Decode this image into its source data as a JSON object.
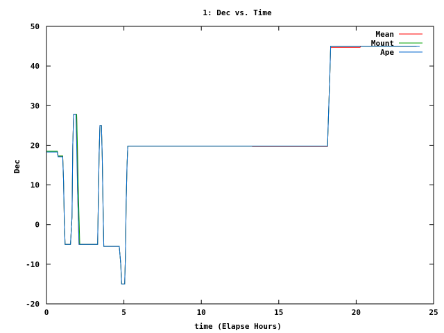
{
  "chart_data": {
    "type": "line",
    "title": "1: Dec vs. Time",
    "xlabel": "time (Elapse Hours)",
    "ylabel": "Dec",
    "xlim": [
      0,
      25
    ],
    "ylim": [
      -20,
      50
    ],
    "xticks": [
      0,
      5,
      10,
      15,
      20,
      25
    ],
    "yticks": [
      -20,
      -10,
      0,
      10,
      20,
      30,
      40,
      50
    ],
    "grid": false,
    "legend_position": "top-right",
    "series": [
      {
        "name": "Mean",
        "color": "#ff0000",
        "points": [
          [
            0,
            18.5
          ],
          [
            0.7,
            18.5
          ],
          [
            0.75,
            17.3
          ],
          [
            1.05,
            17.3
          ],
          [
            1.1,
            11
          ],
          [
            1.15,
            1
          ],
          [
            1.2,
            -5
          ],
          [
            1.55,
            -5
          ],
          [
            1.65,
            2
          ],
          [
            1.7,
            20
          ],
          [
            1.75,
            27.8
          ],
          [
            1.95,
            27.8
          ],
          [
            1.98,
            20
          ],
          [
            2.0,
            10
          ],
          [
            2.05,
            2
          ],
          [
            2.1,
            -5
          ],
          [
            3.3,
            -5
          ],
          [
            3.4,
            18
          ],
          [
            3.45,
            25
          ],
          [
            3.55,
            25
          ],
          [
            3.6,
            17
          ],
          [
            3.65,
            5
          ],
          [
            3.7,
            -5.5
          ],
          [
            4.7,
            -5.5
          ],
          [
            4.8,
            -10
          ],
          [
            4.85,
            -15
          ],
          [
            5.05,
            -15
          ],
          [
            5.1,
            -8
          ],
          [
            5.15,
            6
          ],
          [
            5.2,
            15
          ],
          [
            5.25,
            19.8
          ],
          [
            13.3,
            19.8
          ],
          [
            13.3,
            19.7
          ],
          [
            18.15,
            19.7
          ],
          [
            18.2,
            26
          ],
          [
            18.3,
            38
          ],
          [
            18.35,
            44.7
          ],
          [
            20.25,
            44.7
          ],
          [
            20.3,
            45
          ],
          [
            23.9,
            45
          ]
        ]
      },
      {
        "name": "Mount",
        "color": "#00a000",
        "points": [
          [
            0,
            18.5
          ],
          [
            0.7,
            18.5
          ],
          [
            0.75,
            17.3
          ],
          [
            1.05,
            17.3
          ],
          [
            1.1,
            11
          ],
          [
            1.15,
            1
          ],
          [
            1.2,
            -5
          ],
          [
            1.55,
            -5
          ],
          [
            1.65,
            2
          ],
          [
            1.7,
            20
          ],
          [
            1.75,
            27.8
          ],
          [
            1.95,
            27.8
          ],
          [
            2.0,
            20
          ],
          [
            2.05,
            10
          ],
          [
            2.1,
            2
          ],
          [
            2.15,
            -5
          ],
          [
            3.3,
            -5
          ],
          [
            3.4,
            18
          ],
          [
            3.45,
            25
          ],
          [
            3.55,
            25
          ],
          [
            3.6,
            17
          ],
          [
            3.65,
            5
          ],
          [
            3.7,
            -5.5
          ],
          [
            4.7,
            -5.5
          ],
          [
            4.8,
            -10
          ],
          [
            4.85,
            -15
          ],
          [
            5.05,
            -15
          ],
          [
            5.1,
            -8
          ],
          [
            5.15,
            6
          ],
          [
            5.2,
            15
          ],
          [
            5.25,
            19.8
          ],
          [
            18.15,
            19.8
          ],
          [
            18.2,
            26
          ],
          [
            18.3,
            38
          ],
          [
            18.35,
            45
          ],
          [
            23.9,
            45
          ]
        ]
      },
      {
        "name": "Ape",
        "color": "#0066cc",
        "points": [
          [
            0,
            18.3
          ],
          [
            0.7,
            18.3
          ],
          [
            0.75,
            17.1
          ],
          [
            1.05,
            17.1
          ],
          [
            1.1,
            11
          ],
          [
            1.15,
            1
          ],
          [
            1.2,
            -5
          ],
          [
            1.55,
            -5
          ],
          [
            1.65,
            2
          ],
          [
            1.7,
            20
          ],
          [
            1.75,
            27.8
          ],
          [
            1.9,
            27.8
          ],
          [
            1.95,
            20
          ],
          [
            2.0,
            10
          ],
          [
            2.05,
            2
          ],
          [
            2.1,
            -5
          ],
          [
            3.3,
            -5
          ],
          [
            3.4,
            18
          ],
          [
            3.45,
            25
          ],
          [
            3.55,
            25
          ],
          [
            3.6,
            17
          ],
          [
            3.65,
            5
          ],
          [
            3.7,
            -5.5
          ],
          [
            4.7,
            -5.5
          ],
          [
            4.8,
            -10
          ],
          [
            4.85,
            -15
          ],
          [
            5.05,
            -15
          ],
          [
            5.1,
            -8
          ],
          [
            5.15,
            6
          ],
          [
            5.2,
            15
          ],
          [
            5.25,
            19.8
          ],
          [
            18.15,
            19.8
          ],
          [
            18.2,
            26
          ],
          [
            18.3,
            38
          ],
          [
            18.35,
            45
          ],
          [
            24.1,
            45
          ]
        ]
      }
    ]
  }
}
